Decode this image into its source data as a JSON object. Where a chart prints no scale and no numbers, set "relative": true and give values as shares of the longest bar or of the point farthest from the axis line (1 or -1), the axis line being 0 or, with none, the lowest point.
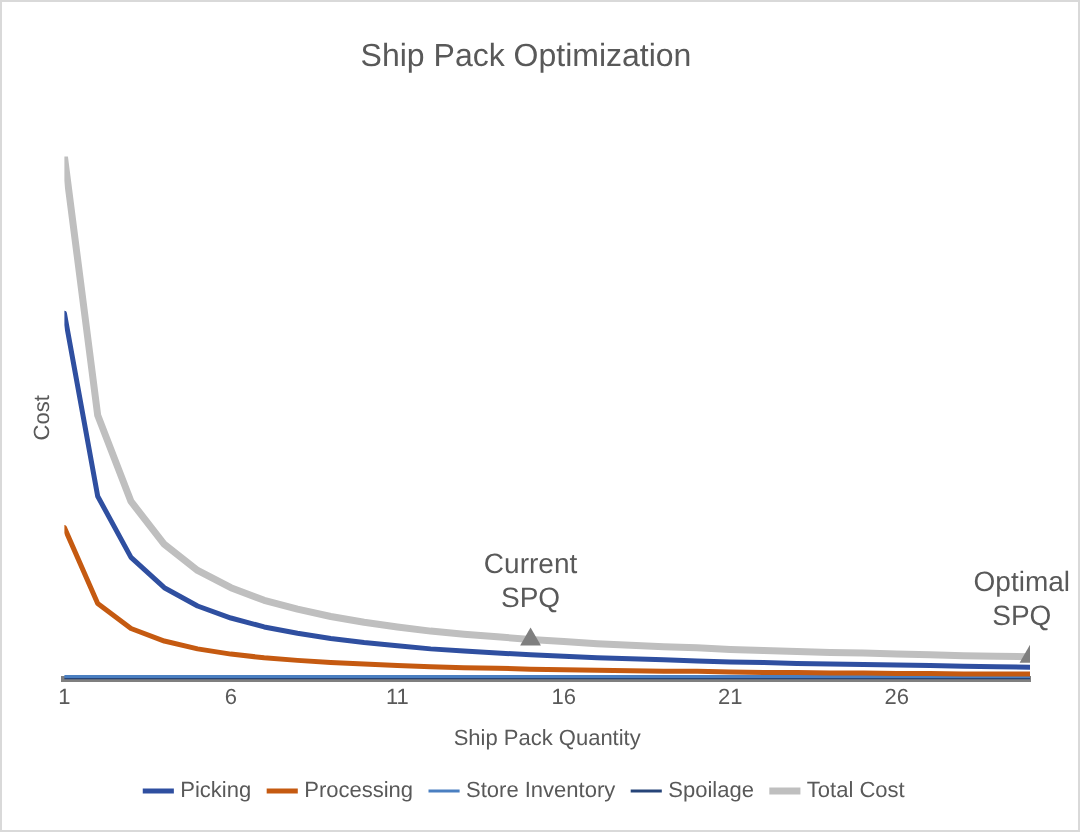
{
  "chart_data": {
    "type": "line",
    "title": "Ship Pack Optimization",
    "xlabel": "Ship Pack Quantity",
    "ylabel": "Cost",
    "relative": true,
    "x": [
      1,
      2,
      3,
      4,
      5,
      6,
      7,
      8,
      9,
      10,
      11,
      12,
      13,
      14,
      15,
      16,
      17,
      18,
      19,
      20,
      21,
      22,
      23,
      24,
      25,
      26,
      27,
      28,
      29,
      30
    ],
    "xlim": [
      1,
      30
    ],
    "xticks": [
      1,
      6,
      11,
      16,
      21,
      26
    ],
    "series": [
      {
        "name": "Picking",
        "color": "#2f4fa0",
        "values": [
          0.7,
          0.35,
          0.233,
          0.175,
          0.14,
          0.117,
          0.1,
          0.088,
          0.078,
          0.07,
          0.064,
          0.058,
          0.054,
          0.05,
          0.047,
          0.044,
          0.041,
          0.039,
          0.037,
          0.035,
          0.033,
          0.032,
          0.03,
          0.029,
          0.028,
          0.027,
          0.026,
          0.025,
          0.024,
          0.023
        ]
      },
      {
        "name": "Processing",
        "color": "#c55a11",
        "values": [
          0.29,
          0.145,
          0.097,
          0.073,
          0.058,
          0.048,
          0.041,
          0.036,
          0.032,
          0.029,
          0.026,
          0.024,
          0.022,
          0.021,
          0.019,
          0.018,
          0.017,
          0.016,
          0.015,
          0.015,
          0.014,
          0.013,
          0.013,
          0.012,
          0.012,
          0.011,
          0.011,
          0.01,
          0.01,
          0.01
        ]
      },
      {
        "name": "Store Inventory",
        "color": "#4a7fc1",
        "values": [
          0.005,
          0.005,
          0.005,
          0.005,
          0.005,
          0.005,
          0.005,
          0.005,
          0.005,
          0.005,
          0.005,
          0.005,
          0.005,
          0.005,
          0.005,
          0.005,
          0.005,
          0.005,
          0.005,
          0.005,
          0.005,
          0.005,
          0.005,
          0.005,
          0.005,
          0.005,
          0.005,
          0.005,
          0.005,
          0.005
        ]
      },
      {
        "name": "Spoilage",
        "color": "#264478",
        "values": [
          0,
          0,
          0,
          0,
          0,
          0,
          0,
          0,
          0,
          0,
          0,
          0,
          0,
          0,
          0,
          0,
          0,
          0,
          0,
          0,
          0,
          0,
          0,
          0,
          0,
          0,
          0,
          0,
          0,
          0
        ]
      },
      {
        "name": "Total Cost",
        "color": "#bfbfbf",
        "values": [
          1.0,
          0.505,
          0.34,
          0.258,
          0.208,
          0.175,
          0.151,
          0.134,
          0.12,
          0.109,
          0.1,
          0.092,
          0.086,
          0.081,
          0.076,
          0.072,
          0.068,
          0.065,
          0.062,
          0.06,
          0.057,
          0.055,
          0.053,
          0.051,
          0.05,
          0.048,
          0.047,
          0.045,
          0.044,
          0.043
        ]
      },
      {
        "type": "scatter",
        "color": "#7f7f7f",
        "marker": "triangle",
        "x": [
          15,
          30
        ],
        "values": [
          0.076,
          0.043
        ]
      }
    ],
    "annotations": [
      {
        "text": "Current SPQ",
        "x": 15,
        "y": 0.076
      },
      {
        "text": "Optimal SPQ",
        "x": 30,
        "y": 0.043
      }
    ],
    "legend": "bottom",
    "marker": "none",
    "line_style": "solid",
    "grid": false
  }
}
